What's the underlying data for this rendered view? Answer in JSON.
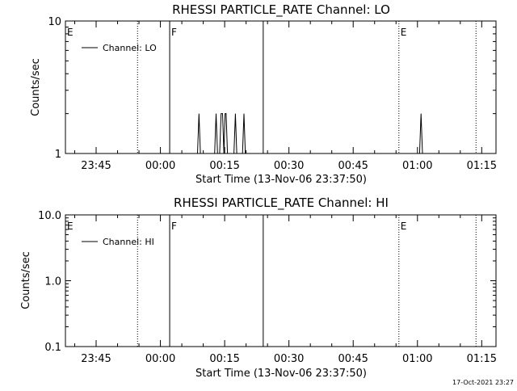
{
  "footer": {
    "timestamp": "17-Oct-2021 23:27"
  },
  "chart_data": [
    {
      "type": "line",
      "title": "RHESSI PARTICLE_RATE Channel: LO",
      "xlabel": "Start Time (13-Nov-06 23:37:50)",
      "ylabel": "Counts/sec",
      "yscale": "log",
      "ylim": [
        1,
        10
      ],
      "ytick_labels": [
        "1",
        "10"
      ],
      "xlim": [
        "23:37:50",
        "01:18:20"
      ],
      "xtick_labels": [
        "23:45",
        "00:00",
        "00:15",
        "00:30",
        "00:45",
        "01:00",
        "01:15"
      ],
      "legend": {
        "position": "top-left",
        "entries": [
          "Channel: LO"
        ]
      },
      "markers": [
        {
          "label": "E",
          "time": "23:37:50",
          "style": "dotted"
        },
        {
          "label": "",
          "time": "23:54:40",
          "style": "dotted"
        },
        {
          "label": "F",
          "time": "00:02:10",
          "style": "solid"
        },
        {
          "label": "",
          "time": "00:24:00",
          "style": "solid"
        },
        {
          "label": "E",
          "time": "00:55:40",
          "style": "dotted"
        },
        {
          "label": "",
          "time": "01:13:40",
          "style": "dotted"
        }
      ],
      "series": [
        {
          "values": [
            {
              "t": "00:08:40",
              "v": 1
            },
            {
              "t": "00:09:00",
              "v": 2
            },
            {
              "t": "00:09:20",
              "v": 1
            },
            {
              "t": "00:12:40",
              "v": 1
            },
            {
              "t": "00:13:00",
              "v": 2
            },
            {
              "t": "00:13:20",
              "v": 1
            },
            {
              "t": "00:13:50",
              "v": 1
            },
            {
              "t": "00:14:10",
              "v": 2
            },
            {
              "t": "00:14:30",
              "v": 2
            },
            {
              "t": "00:14:50",
              "v": 1
            },
            {
              "t": "00:15:05",
              "v": 2
            },
            {
              "t": "00:15:20",
              "v": 2
            },
            {
              "t": "00:15:40",
              "v": 1
            },
            {
              "t": "00:17:10",
              "v": 1
            },
            {
              "t": "00:17:30",
              "v": 2
            },
            {
              "t": "00:17:50",
              "v": 1
            },
            {
              "t": "00:19:10",
              "v": 1
            },
            {
              "t": "00:19:30",
              "v": 2
            },
            {
              "t": "00:19:50",
              "v": 1
            },
            {
              "t": "01:00:30",
              "v": 1
            },
            {
              "t": "01:00:50",
              "v": 2
            },
            {
              "t": "01:01:10",
              "v": 1
            }
          ]
        }
      ]
    },
    {
      "type": "line",
      "title": "RHESSI PARTICLE_RATE Channel: HI",
      "xlabel": "Start Time (13-Nov-06 23:37:50)",
      "ylabel": "Counts/sec",
      "yscale": "log",
      "ylim": [
        0.1,
        10
      ],
      "ytick_labels": [
        "0.1",
        "1.0",
        "10.0"
      ],
      "xlim": [
        "23:37:50",
        "01:18:20"
      ],
      "xtick_labels": [
        "23:45",
        "00:00",
        "00:15",
        "00:30",
        "00:45",
        "01:00",
        "01:15"
      ],
      "legend": {
        "position": "top-left",
        "entries": [
          "Channel: HI"
        ]
      },
      "markers": [
        {
          "label": "E",
          "time": "23:37:50",
          "style": "dotted"
        },
        {
          "label": "",
          "time": "23:54:40",
          "style": "dotted"
        },
        {
          "label": "F",
          "time": "00:02:10",
          "style": "solid"
        },
        {
          "label": "",
          "time": "00:24:00",
          "style": "solid"
        },
        {
          "label": "E",
          "time": "00:55:40",
          "style": "dotted"
        },
        {
          "label": "",
          "time": "01:13:40",
          "style": "dotted"
        }
      ],
      "series": [
        {
          "values": []
        }
      ]
    }
  ]
}
